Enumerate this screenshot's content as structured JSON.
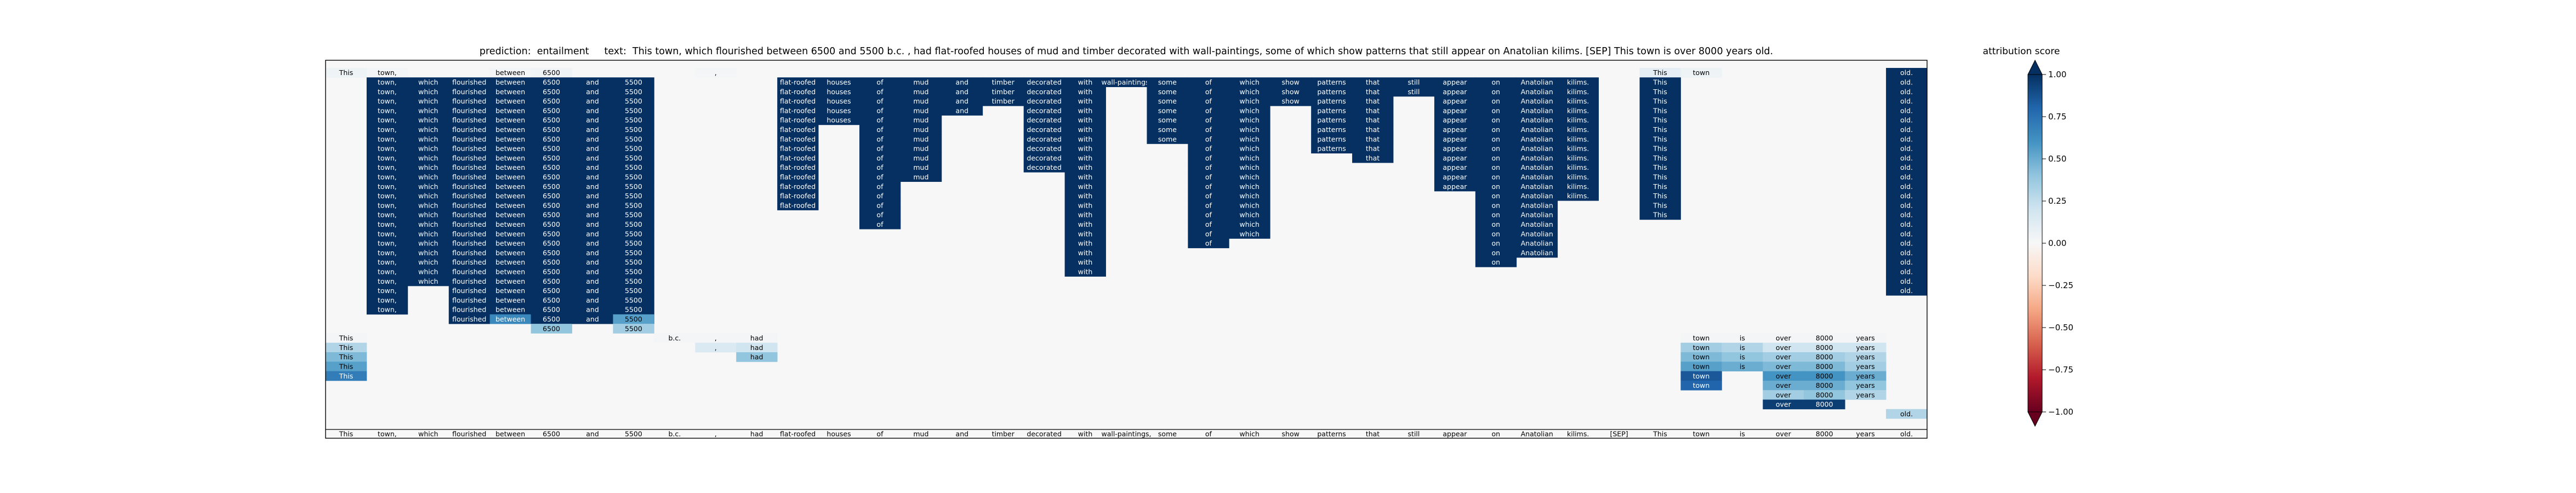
{
  "chart_data": {
    "type": "heatmap",
    "title": "prediction:  entailment     text:  This town, which flourished between 6500 and 5500 b.c. , had flat-roofed houses of mud and timber decorated with wall-paintings, some of which show patterns that still appear on Anatolian kilims. [SEP] This town is over 8000 years old.",
    "tokens": [
      "This",
      "town,",
      "which",
      "flourished",
      "between",
      "6500",
      "and",
      "5500",
      "b.c.",
      ",",
      "had",
      "flat-roofed",
      "houses",
      "of",
      "mud",
      "and",
      "timber",
      "decorated",
      "with",
      "wall-paintings,",
      "some",
      "of",
      "which",
      "show",
      "patterns",
      "that",
      "still",
      "appear",
      "on",
      "Anatolian",
      "kilims.",
      "[SEP]",
      "This",
      "town",
      "is",
      "over",
      "8000",
      "years",
      "old."
    ],
    "cells": [
      {
        "t": 0,
        "rows": [
          0
        ],
        "v": 0.05
      },
      {
        "t": 1,
        "rows": [
          0
        ],
        "v": 0.02
      },
      {
        "t": 4,
        "rows": [
          0
        ],
        "v": 0.02
      },
      {
        "t": 5,
        "rows": [
          0
        ],
        "v": 0.03
      },
      {
        "t": 9,
        "rows": [
          0
        ],
        "v": 0.02
      },
      {
        "t": 32,
        "rows": [
          0
        ],
        "v": 0.1
      },
      {
        "t": 33,
        "rows": [
          0
        ],
        "v": 0.05
      },
      {
        "t": 1,
        "range": [
          1,
          25
        ],
        "v": 1.0
      },
      {
        "t": 2,
        "range": [
          1,
          22
        ],
        "v": 1.0
      },
      {
        "t": 3,
        "range": [
          1,
          26
        ],
        "v": 1.0
      },
      {
        "t": 4,
        "range": [
          1,
          25
        ],
        "v": 1.0
      },
      {
        "t": 4,
        "rows": [
          26
        ],
        "v": 0.65
      },
      {
        "t": 5,
        "range": [
          1,
          26
        ],
        "v": 1.0
      },
      {
        "t": 5,
        "rows": [
          27
        ],
        "v": 0.4
      },
      {
        "t": 6,
        "range": [
          1,
          26
        ],
        "v": 1.0
      },
      {
        "t": 7,
        "range": [
          1,
          26
        ],
        "v": 1.0
      },
      {
        "t": 7,
        "rows": [
          26
        ],
        "v": 0.55
      },
      {
        "t": 7,
        "rows": [
          27
        ],
        "v": 0.35
      },
      {
        "t": 11,
        "range": [
          1,
          14
        ],
        "v": 1.0
      },
      {
        "t": 12,
        "range": [
          1,
          5
        ],
        "v": 1.0
      },
      {
        "t": 13,
        "range": [
          1,
          16
        ],
        "v": 1.0
      },
      {
        "t": 14,
        "range": [
          1,
          11
        ],
        "v": 1.0
      },
      {
        "t": 15,
        "range": [
          1,
          4
        ],
        "v": 1.0
      },
      {
        "t": 16,
        "range": [
          1,
          3
        ],
        "v": 1.0
      },
      {
        "t": 17,
        "range": [
          1,
          10
        ],
        "v": 1.0
      },
      {
        "t": 18,
        "range": [
          1,
          21
        ],
        "v": 1.0
      },
      {
        "t": 19,
        "rows": [
          1
        ],
        "v": 1.0
      },
      {
        "t": 20,
        "range": [
          1,
          7
        ],
        "v": 1.0
      },
      {
        "t": 21,
        "range": [
          1,
          18
        ],
        "v": 1.0
      },
      {
        "t": 22,
        "range": [
          1,
          17
        ],
        "v": 1.0
      },
      {
        "t": 23,
        "range": [
          1,
          3
        ],
        "v": 1.0
      },
      {
        "t": 24,
        "range": [
          1,
          8
        ],
        "v": 1.0
      },
      {
        "t": 25,
        "range": [
          1,
          9
        ],
        "v": 1.0
      },
      {
        "t": 26,
        "range": [
          1,
          2
        ],
        "v": 1.0
      },
      {
        "t": 27,
        "range": [
          1,
          12
        ],
        "v": 1.0
      },
      {
        "t": 28,
        "range": [
          1,
          20
        ],
        "v": 1.0
      },
      {
        "t": 29,
        "range": [
          1,
          19
        ],
        "v": 1.0
      },
      {
        "t": 30,
        "range": [
          1,
          13
        ],
        "v": 1.0
      },
      {
        "t": 32,
        "range": [
          1,
          15
        ],
        "v": 1.0
      },
      {
        "t": 38,
        "range": [
          0,
          23
        ],
        "v": 1.0
      },
      {
        "t": 0,
        "rows": [
          28
        ],
        "v": 0.02
      },
      {
        "t": 0,
        "rows": [
          29
        ],
        "v": 0.3
      },
      {
        "t": 0,
        "rows": [
          30
        ],
        "v": 0.45
      },
      {
        "t": 0,
        "rows": [
          31
        ],
        "v": 0.55
      },
      {
        "t": 0,
        "rows": [
          32
        ],
        "v": 0.7
      },
      {
        "t": 8,
        "rows": [
          28
        ],
        "v": 0.02
      },
      {
        "t": 9,
        "rows": [
          28
        ],
        "v": 0.02
      },
      {
        "t": 9,
        "rows": [
          29
        ],
        "v": 0.15
      },
      {
        "t": 10,
        "rows": [
          28
        ],
        "v": 0.02
      },
      {
        "t": 10,
        "rows": [
          29
        ],
        "v": 0.2
      },
      {
        "t": 10,
        "rows": [
          30
        ],
        "v": 0.4
      },
      {
        "t": 33,
        "rows": [
          28
        ],
        "v": 0.02
      },
      {
        "t": 33,
        "rows": [
          29
        ],
        "v": 0.35
      },
      {
        "t": 33,
        "rows": [
          30
        ],
        "v": 0.45
      },
      {
        "t": 33,
        "rows": [
          31
        ],
        "v": 0.55
      },
      {
        "t": 33,
        "rows": [
          32
        ],
        "v": 0.85
      },
      {
        "t": 33,
        "rows": [
          33
        ],
        "v": 0.8
      },
      {
        "t": 34,
        "rows": [
          28
        ],
        "v": 0.02
      },
      {
        "t": 34,
        "rows": [
          29
        ],
        "v": 0.3
      },
      {
        "t": 34,
        "rows": [
          30
        ],
        "v": 0.4
      },
      {
        "t": 34,
        "rows": [
          31
        ],
        "v": 0.5
      },
      {
        "t": 35,
        "rows": [
          28
        ],
        "v": 0.02
      },
      {
        "t": 35,
        "rows": [
          29
        ],
        "v": 0.2
      },
      {
        "t": 35,
        "rows": [
          30
        ],
        "v": 0.35
      },
      {
        "t": 35,
        "rows": [
          31
        ],
        "v": 0.45
      },
      {
        "t": 35,
        "rows": [
          32
        ],
        "v": 0.6
      },
      {
        "t": 35,
        "rows": [
          33
        ],
        "v": 0.5
      },
      {
        "t": 35,
        "rows": [
          34
        ],
        "v": 0.35
      },
      {
        "t": 35,
        "rows": [
          35
        ],
        "v": 0.95
      },
      {
        "t": 36,
        "rows": [
          28
        ],
        "v": 0.02
      },
      {
        "t": 36,
        "rows": [
          29
        ],
        "v": 0.2
      },
      {
        "t": 36,
        "rows": [
          30
        ],
        "v": 0.35
      },
      {
        "t": 36,
        "rows": [
          31
        ],
        "v": 0.45
      },
      {
        "t": 36,
        "rows": [
          32
        ],
        "v": 0.6
      },
      {
        "t": 36,
        "rows": [
          33
        ],
        "v": 0.5
      },
      {
        "t": 36,
        "rows": [
          34
        ],
        "v": 0.4
      },
      {
        "t": 36,
        "rows": [
          35
        ],
        "v": 0.95
      },
      {
        "t": 37,
        "rows": [
          28
        ],
        "v": 0.02
      },
      {
        "t": 37,
        "rows": [
          29
        ],
        "v": 0.2
      },
      {
        "t": 37,
        "rows": [
          30
        ],
        "v": 0.3
      },
      {
        "t": 37,
        "rows": [
          31
        ],
        "v": 0.35
      },
      {
        "t": 37,
        "rows": [
          32
        ],
        "v": 0.5
      },
      {
        "t": 37,
        "rows": [
          33
        ],
        "v": 0.4
      },
      {
        "t": 37,
        "rows": [
          34
        ],
        "v": 0.3
      },
      {
        "t": 38,
        "rows": [
          36
        ],
        "v": 0.3
      }
    ],
    "colorbar": {
      "label": "attribution score",
      "vmin": -1.0,
      "vmax": 1.0,
      "ticks": [
        -1.0,
        -0.75,
        -0.5,
        -0.25,
        0.0,
        0.25,
        0.5,
        0.75,
        1.0
      ],
      "tick_labels": [
        "−1.00",
        "−0.75",
        "−0.50",
        "−0.25",
        "0.00",
        "0.25",
        "0.50",
        "0.75",
        "1.00"
      ],
      "colormap": "RdBu",
      "extend": "both"
    }
  }
}
